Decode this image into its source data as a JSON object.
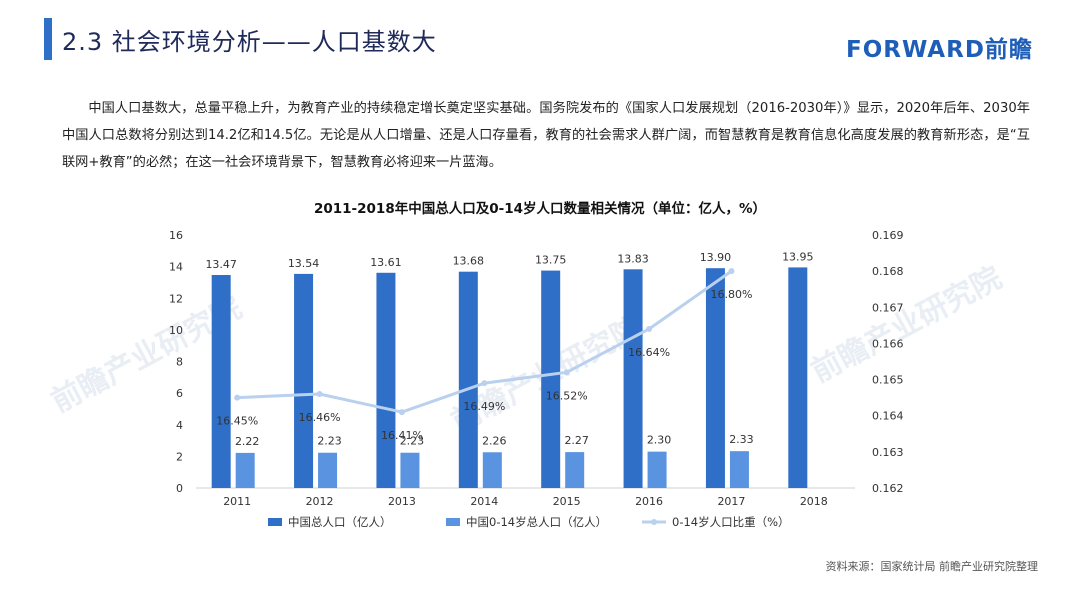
{
  "header": {
    "title": "2.3 社会环境分析——人口基数大",
    "logo": "FORWARD前瞻"
  },
  "paragraph": "中国人口基数大，总量平稳上升，为教育产业的持续稳定增长奠定坚实基础。国务院发布的《国家人口发展规划（2016-2030年）》显示，2020年后年、2030年中国人口总数将分别达到14.2亿和14.5亿。无论是从人口增量、还是人口存量看，教育的社会需求人群广阔，而智慧教育是教育信息化高度发展的教育新形态，是“互联网+教育”的必然；在这一社会环境背景下，智慧教育必将迎来一片蓝海。",
  "watermark": [
    "前瞻产业研究院",
    "前瞻产业研究院",
    "前瞻产业研究院"
  ],
  "source": "资料来源：国家统计局 前瞻产业研究院整理",
  "colors": {
    "primary": "#2f6fc7",
    "secondary": "#5a93e0",
    "line": "#b9d0ef"
  },
  "chart_data": {
    "type": "bar",
    "title": "2011-2018年中国总人口及0-14岁人口数量相关情况（单位：亿人，%）",
    "categories": [
      "2011",
      "2012",
      "2013",
      "2014",
      "2015",
      "2016",
      "2017",
      "2018"
    ],
    "series": [
      {
        "name": "中国总人口（亿人）",
        "type": "bar",
        "axis": "left",
        "values": [
          13.47,
          13.54,
          13.61,
          13.68,
          13.75,
          13.83,
          13.9,
          13.95
        ],
        "labels": [
          "13.47",
          "13.54",
          "13.61",
          "13.68",
          "13.75",
          "13.83",
          "13.90",
          "13.95"
        ]
      },
      {
        "name": "中国0-14岁总人口（亿人）",
        "type": "bar",
        "axis": "left",
        "values": [
          2.22,
          2.23,
          2.23,
          2.26,
          2.27,
          2.3,
          2.33,
          null
        ],
        "labels": [
          "2.22",
          "2.23",
          "2.23",
          "2.26",
          "2.27",
          "2.30",
          "2.33",
          ""
        ]
      },
      {
        "name": "0-14岁人口比重（%）",
        "type": "line",
        "axis": "right",
        "values": [
          0.1645,
          0.1646,
          0.1641,
          0.1649,
          0.1652,
          0.1664,
          0.168,
          null
        ],
        "labels": [
          "16.45%",
          "16.46%",
          "16.41%",
          "16.49%",
          "16.52%",
          "16.64%",
          "16.80%",
          ""
        ]
      }
    ],
    "ylim": [
      0,
      16
    ],
    "yticks": [
      "0",
      "2",
      "4",
      "6",
      "8",
      "10",
      "12",
      "14",
      "16"
    ],
    "y2lim": [
      0.162,
      0.169
    ],
    "y2ticks": [
      "0.162",
      "0.163",
      "0.164",
      "0.165",
      "0.166",
      "0.167",
      "0.168",
      "0.169"
    ],
    "legend": "bottom"
  }
}
